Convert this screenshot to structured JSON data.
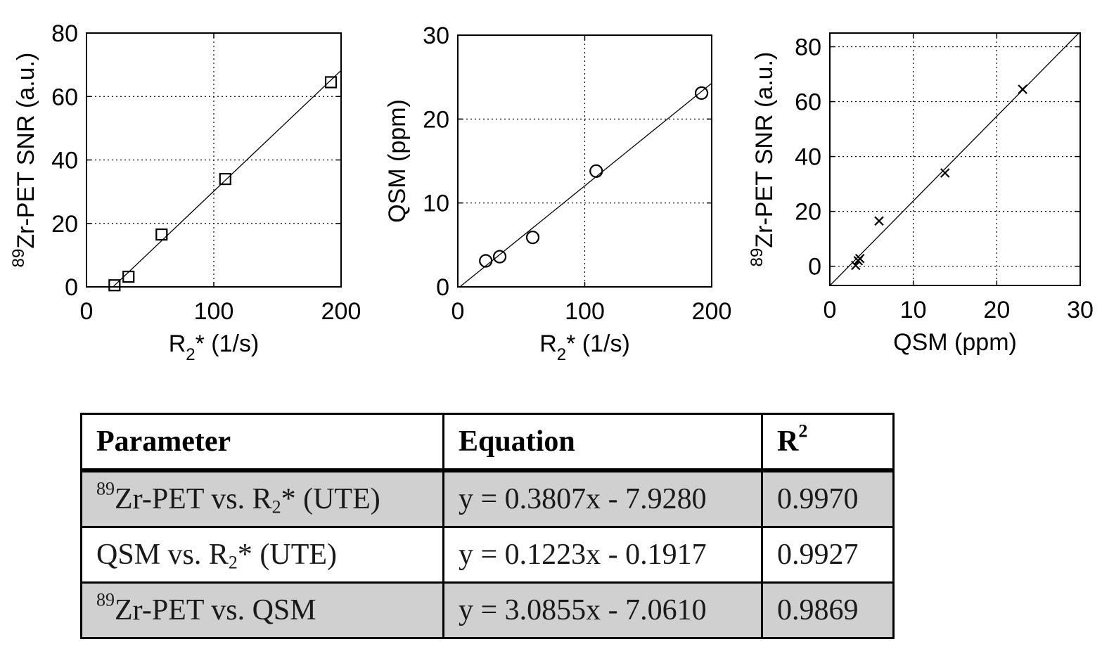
{
  "chart_data": [
    {
      "type": "scatter",
      "title": "",
      "xlabel": {
        "main": "R",
        "sub": "2",
        "rest": "* (1/s)"
      },
      "ylabel": {
        "sup": "89",
        "main": "Zr-PET SNR (a.u.)"
      },
      "xlim": [
        0,
        200
      ],
      "ylim": [
        0,
        80
      ],
      "xticks": [
        0,
        100,
        200
      ],
      "yticks": [
        0,
        20,
        40,
        60,
        80
      ],
      "grid": true,
      "marker": "square",
      "series": [
        {
          "x": [
            22,
            33,
            59,
            109,
            192
          ],
          "y": [
            0.5,
            3.2,
            16.5,
            34.0,
            64.5
          ]
        }
      ],
      "fit": {
        "slope": 0.3807,
        "intercept": -7.928
      }
    },
    {
      "type": "scatter",
      "title": "",
      "xlabel": {
        "main": "R",
        "sub": "2",
        "rest": "* (1/s)"
      },
      "ylabel": {
        "sup": "",
        "main": "QSM (ppm)"
      },
      "xlim": [
        0,
        200
      ],
      "ylim": [
        0,
        30
      ],
      "xticks": [
        0,
        100,
        200
      ],
      "yticks": [
        0,
        10,
        20,
        30
      ],
      "grid": true,
      "marker": "circle",
      "series": [
        {
          "x": [
            22,
            33,
            59,
            109,
            192
          ],
          "y": [
            3.1,
            3.6,
            5.9,
            13.8,
            23.1
          ]
        }
      ],
      "fit": {
        "slope": 0.1223,
        "intercept": -0.1917
      }
    },
    {
      "type": "scatter",
      "title": "",
      "xlabel": {
        "main": "QSM (ppm)",
        "sub": "",
        "rest": ""
      },
      "ylabel": {
        "sup": "89",
        "main": "Zr-PET SNR (a.u.)"
      },
      "xlim": [
        0,
        30
      ],
      "ylim": [
        -7,
        85
      ],
      "xticks": [
        0,
        10,
        20,
        30
      ],
      "yticks": [
        0,
        20,
        40,
        60,
        80
      ],
      "grid": true,
      "marker": "x",
      "series": [
        {
          "x": [
            3.1,
            3.4,
            3.6,
            5.9,
            13.8,
            23.1
          ],
          "y": [
            0.3,
            2.0,
            2.8,
            16.5,
            34.0,
            64.5
          ]
        }
      ],
      "fit": {
        "slope": 3.0855,
        "intercept": -7.061
      }
    }
  ],
  "table": {
    "headers": {
      "param": "Parameter",
      "eq": "Equation",
      "r2_main": "R",
      "r2_sup": "2"
    },
    "rows": [
      {
        "sup": "89",
        "pre": "Zr-PET vs. R",
        "sub": "2",
        "post": "* (UTE)",
        "eq": "y = 0.3807x - 7.9280",
        "r2": "0.9970",
        "shaded": true
      },
      {
        "sup": "",
        "pre": "QSM vs. R",
        "sub": "2",
        "post": "* (UTE)",
        "eq": "y = 0.1223x - 0.1917",
        "r2": "0.9927",
        "shaded": false
      },
      {
        "sup": "89",
        "pre": "Zr-PET vs. QSM",
        "sub": "",
        "post": "",
        "eq": "y = 3.0855x - 7.0610",
        "r2": "0.9869",
        "shaded": true
      }
    ]
  }
}
